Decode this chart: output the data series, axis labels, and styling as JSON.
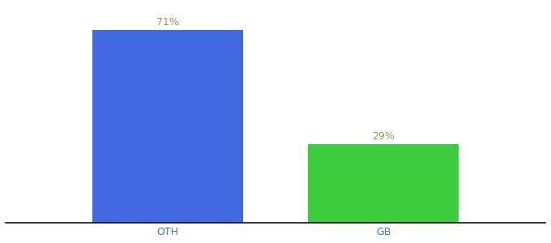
{
  "categories": [
    "OTH",
    "GB"
  ],
  "values": [
    71,
    29
  ],
  "bar_colors": [
    "#4169e1",
    "#3dcc3d"
  ],
  "label_texts": [
    "71%",
    "29%"
  ],
  "label_color": "#a09060",
  "ylim": [
    0,
    80
  ],
  "background_color": "#ffffff",
  "bar_width": 0.28,
  "x_positions": [
    0.3,
    0.7
  ],
  "xlim": [
    0,
    1
  ],
  "tick_fontsize": 9,
  "label_fontsize": 9
}
